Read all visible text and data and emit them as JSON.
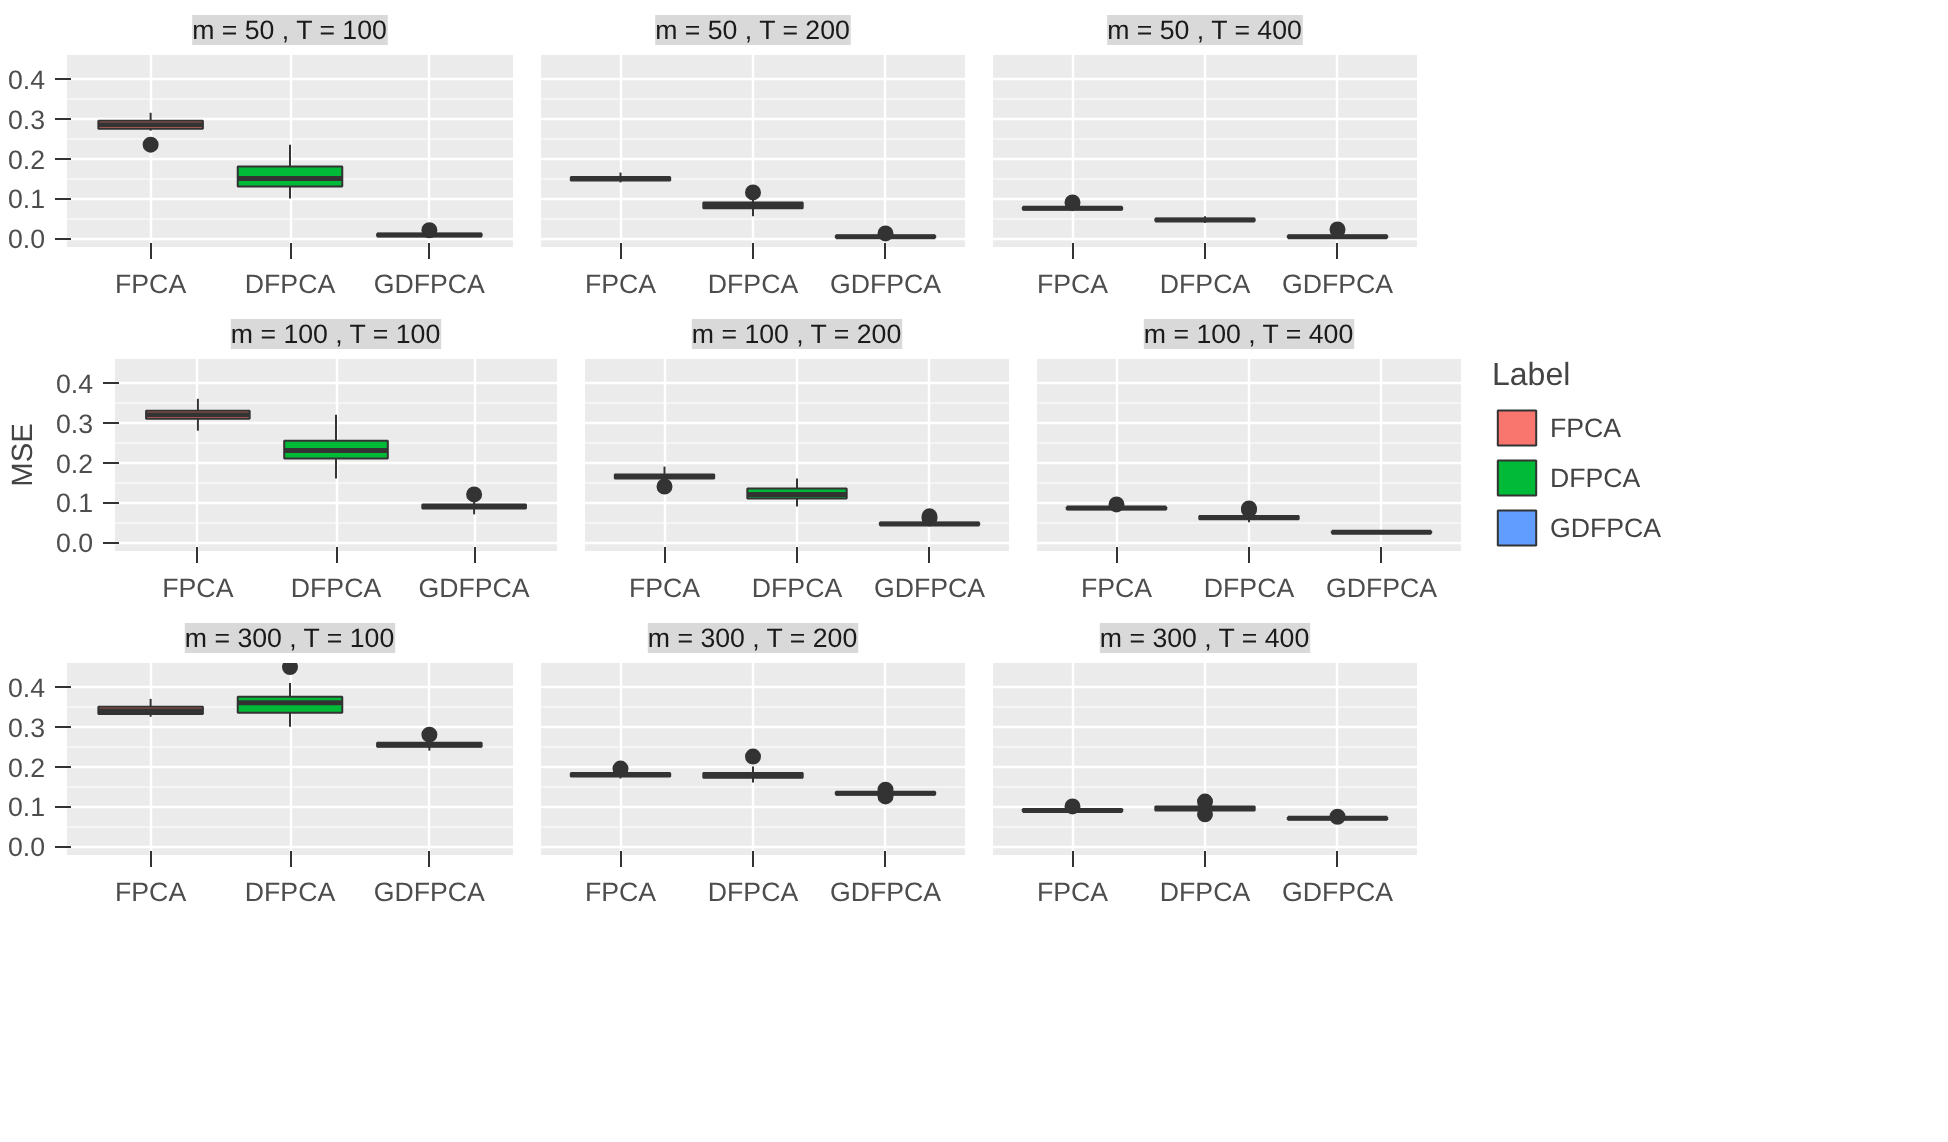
{
  "chart_data": [
    {
      "type": "box",
      "title": "m = 50 , T = 100",
      "categories": [
        "FPCA",
        "DFPCA",
        "GDFPCA"
      ],
      "ylim": [
        -0.022,
        0.46
      ],
      "yticks": [
        {
          "value": 0,
          "label": "0.0"
        },
        {
          "value": 0.1,
          "label": "0.1"
        },
        {
          "value": 0.2,
          "label": "0.2"
        },
        {
          "value": 0.3,
          "label": "0.3"
        },
        {
          "value": 0.4,
          "label": "0.4"
        }
      ],
      "grid": true,
      "series": [
        {
          "color": "#f8766d",
          "boxes": [
            {
              "low": 0.27,
              "q1": 0.275,
              "median": 0.285,
              "q3": 0.295,
              "high": 0.315,
              "outliers": [
                0.235
              ]
            },
            null,
            null
          ]
        },
        {
          "color": "#00ba38",
          "boxes": [
            null,
            {
              "low": 0.1,
              "q1": 0.13,
              "median": 0.15,
              "q3": 0.18,
              "high": 0.235
            },
            null
          ]
        },
        {
          "color": "#619cff",
          "boxes": [
            null,
            null,
            {
              "low": 0.002,
              "q1": 0.005,
              "median": 0.008,
              "q3": 0.011,
              "high": 0.015,
              "outliers": [
                0.02
              ]
            }
          ]
        }
      ]
    },
    {
      "type": "box",
      "title": "m = 50 , T = 200",
      "categories": [
        "FPCA",
        "DFPCA",
        "GDFPCA"
      ],
      "ylim": [
        -0.022,
        0.46
      ],
      "yticks": [
        0,
        0.1,
        0.2,
        0.3,
        0.4
      ],
      "grid": true,
      "tick_labels": "x",
      "series": [
        {
          "color": "#f8766d",
          "boxes": [
            {
              "low": 0.14,
              "q1": 0.145,
              "median": 0.15,
              "q3": 0.153,
              "high": 0.165
            },
            null,
            null
          ]
        },
        {
          "color": "#00ba38",
          "boxes": [
            null,
            {
              "low": 0.055,
              "q1": 0.075,
              "median": 0.082,
              "q3": 0.09,
              "high": 0.105,
              "outliers": [
                0.115
              ]
            },
            null
          ]
        },
        {
          "color": "#619cff",
          "boxes": [
            null,
            null,
            {
              "low": 0.0,
              "q1": 0.002,
              "median": 0.004,
              "q3": 0.006,
              "high": 0.01,
              "outliers": [
                0.012
              ]
            }
          ]
        }
      ]
    },
    {
      "type": "box",
      "title": "m = 50 , T = 400",
      "categories": [
        "FPCA",
        "DFPCA",
        "GDFPCA"
      ],
      "ylim": [
        -0.022,
        0.46
      ],
      "yticks": [
        0,
        0.1,
        0.2,
        0.3,
        0.4
      ],
      "grid": true,
      "tick_labels": "x",
      "series": [
        {
          "color": "#f8766d",
          "boxes": [
            {
              "low": 0.068,
              "q1": 0.072,
              "median": 0.075,
              "q3": 0.078,
              "high": 0.085,
              "outliers": [
                0.09
              ]
            },
            null,
            null
          ]
        },
        {
          "color": "#00ba38",
          "boxes": [
            null,
            {
              "low": 0.038,
              "q1": 0.043,
              "median": 0.046,
              "q3": 0.049,
              "high": 0.055
            },
            null
          ]
        },
        {
          "color": "#619cff",
          "boxes": [
            null,
            null,
            {
              "low": 0.0,
              "q1": 0.002,
              "median": 0.004,
              "q3": 0.006,
              "high": 0.01,
              "outliers": [
                0.022
              ]
            }
          ]
        }
      ]
    },
    {
      "type": "box",
      "title": "m = 100 , T = 100",
      "ylabel": "MSE",
      "categories": [
        "FPCA",
        "DFPCA",
        "GDFPCA"
      ],
      "ylim": [
        -0.022,
        0.46
      ],
      "yticks": [
        {
          "value": 0,
          "label": "0.0"
        },
        {
          "value": 0.1,
          "label": "0.1"
        },
        {
          "value": 0.2,
          "label": "0.2"
        },
        {
          "value": 0.3,
          "label": "0.3"
        },
        {
          "value": 0.4,
          "label": "0.4"
        }
      ],
      "grid": true,
      "series": [
        {
          "color": "#f8766d",
          "boxes": [
            {
              "low": 0.28,
              "q1": 0.31,
              "median": 0.32,
              "q3": 0.33,
              "high": 0.36
            },
            null,
            null
          ]
        },
        {
          "color": "#00ba38",
          "boxes": [
            null,
            {
              "low": 0.16,
              "q1": 0.21,
              "median": 0.23,
              "q3": 0.255,
              "high": 0.32
            },
            null
          ]
        },
        {
          "color": "#619cff",
          "boxes": [
            null,
            null,
            {
              "low": 0.07,
              "q1": 0.085,
              "median": 0.09,
              "q3": 0.095,
              "high": 0.105,
              "outliers": [
                0.12
              ]
            }
          ]
        }
      ]
    },
    {
      "type": "box",
      "title": "m = 100 , T = 200",
      "categories": [
        "FPCA",
        "DFPCA",
        "GDFPCA"
      ],
      "ylim": [
        -0.022,
        0.46
      ],
      "yticks": [
        0,
        0.1,
        0.2,
        0.3,
        0.4
      ],
      "grid": true,
      "tick_labels": "x",
      "series": [
        {
          "color": "#f8766d",
          "boxes": [
            {
              "low": 0.155,
              "q1": 0.16,
              "median": 0.165,
              "q3": 0.17,
              "high": 0.19,
              "outliers": [
                0.14
              ]
            },
            null,
            null
          ]
        },
        {
          "color": "#00ba38",
          "boxes": [
            null,
            {
              "low": 0.09,
              "q1": 0.11,
              "median": 0.12,
              "q3": 0.135,
              "high": 0.16
            },
            null
          ]
        },
        {
          "color": "#619cff",
          "boxes": [
            null,
            null,
            {
              "low": 0.04,
              "q1": 0.043,
              "median": 0.046,
              "q3": 0.049,
              "high": 0.055,
              "outliers": [
                0.06,
                0.065
              ]
            }
          ]
        }
      ]
    },
    {
      "type": "box",
      "title": "m = 100 , T = 400",
      "legend": "right",
      "legend_title": "Label",
      "categories": [
        "FPCA",
        "DFPCA",
        "GDFPCA"
      ],
      "ylim": [
        -0.022,
        0.46
      ],
      "yticks": [
        0,
        0.1,
        0.2,
        0.3,
        0.4
      ],
      "grid": true,
      "tick_labels": "x",
      "series": [
        {
          "name": "FPCA",
          "color": "#f8766d",
          "boxes": [
            {
              "low": 0.08,
              "q1": 0.083,
              "median": 0.086,
              "q3": 0.088,
              "high": 0.092,
              "outliers": [
                0.095
              ]
            },
            null,
            null
          ]
        },
        {
          "name": "DFPCA",
          "color": "#00ba38",
          "boxes": [
            null,
            {
              "low": 0.05,
              "q1": 0.058,
              "median": 0.062,
              "q3": 0.066,
              "high": 0.075,
              "outliers": [
                0.082,
                0.085
              ]
            },
            null
          ]
        },
        {
          "name": "GDFPCA",
          "color": "#619cff",
          "boxes": [
            null,
            null,
            {
              "low": 0.02,
              "q1": 0.023,
              "median": 0.025,
              "q3": 0.027,
              "high": 0.03
            }
          ]
        }
      ]
    },
    {
      "type": "box",
      "title": "m = 300 , T = 100",
      "categories": [
        "FPCA",
        "DFPCA",
        "GDFPCA"
      ],
      "ylim": [
        -0.022,
        0.46
      ],
      "yticks": [
        {
          "value": 0,
          "label": "0.0"
        },
        {
          "value": 0.1,
          "label": "0.1"
        },
        {
          "value": 0.2,
          "label": "0.2"
        },
        {
          "value": 0.3,
          "label": "0.3"
        },
        {
          "value": 0.4,
          "label": "0.4"
        }
      ],
      "grid": true,
      "series": [
        {
          "color": "#f8766d",
          "boxes": [
            {
              "low": 0.325,
              "q1": 0.332,
              "median": 0.34,
              "q3": 0.35,
              "high": 0.37
            },
            null,
            null
          ]
        },
        {
          "color": "#00ba38",
          "boxes": [
            null,
            {
              "low": 0.3,
              "q1": 0.335,
              "median": 0.36,
              "q3": 0.375,
              "high": 0.41,
              "outliers": [
                0.45
              ]
            },
            null
          ]
        },
        {
          "color": "#619cff",
          "boxes": [
            null,
            null,
            {
              "low": 0.24,
              "q1": 0.25,
              "median": 0.255,
              "q3": 0.26,
              "high": 0.27,
              "outliers": [
                0.28
              ]
            }
          ]
        }
      ]
    },
    {
      "type": "box",
      "title": "m = 300 , T = 200",
      "categories": [
        "FPCA",
        "DFPCA",
        "GDFPCA"
      ],
      "ylim": [
        -0.022,
        0.46
      ],
      "yticks": [
        0,
        0.1,
        0.2,
        0.3,
        0.4
      ],
      "grid": true,
      "tick_labels": "x",
      "series": [
        {
          "color": "#f8766d",
          "boxes": [
            {
              "low": 0.17,
              "q1": 0.175,
              "median": 0.18,
              "q3": 0.183,
              "high": 0.19,
              "outliers": [
                0.195
              ]
            },
            null,
            null
          ]
        },
        {
          "color": "#00ba38",
          "boxes": [
            null,
            {
              "low": 0.16,
              "q1": 0.172,
              "median": 0.178,
              "q3": 0.184,
              "high": 0.2,
              "outliers": [
                0.225
              ]
            },
            null
          ]
        },
        {
          "color": "#619cff",
          "boxes": [
            null,
            null,
            {
              "low": 0.128,
              "q1": 0.13,
              "median": 0.133,
              "q3": 0.136,
              "high": 0.14,
              "outliers": [
                0.125,
                0.142
              ]
            }
          ]
        }
      ]
    },
    {
      "type": "box",
      "title": "m = 300 , T = 400",
      "categories": [
        "FPCA",
        "DFPCA",
        "GDFPCA"
      ],
      "ylim": [
        -0.022,
        0.46
      ],
      "yticks": [
        0,
        0.1,
        0.2,
        0.3,
        0.4
      ],
      "grid": true,
      "tick_labels": "x",
      "series": [
        {
          "color": "#f8766d",
          "boxes": [
            {
              "low": 0.085,
              "q1": 0.088,
              "median": 0.09,
              "q3": 0.093,
              "high": 0.097,
              "outliers": [
                0.1
              ]
            },
            null,
            null
          ]
        },
        {
          "color": "#00ba38",
          "boxes": [
            null,
            {
              "low": 0.085,
              "q1": 0.09,
              "median": 0.095,
              "q3": 0.1,
              "high": 0.105,
              "outliers": [
                0.08,
                0.112
              ]
            },
            null
          ]
        },
        {
          "color": "#619cff",
          "boxes": [
            null,
            null,
            {
              "low": 0.065,
              "q1": 0.068,
              "median": 0.07,
              "q3": 0.072,
              "high": 0.075,
              "outliers": [
                0.074
              ]
            }
          ]
        }
      ]
    }
  ]
}
